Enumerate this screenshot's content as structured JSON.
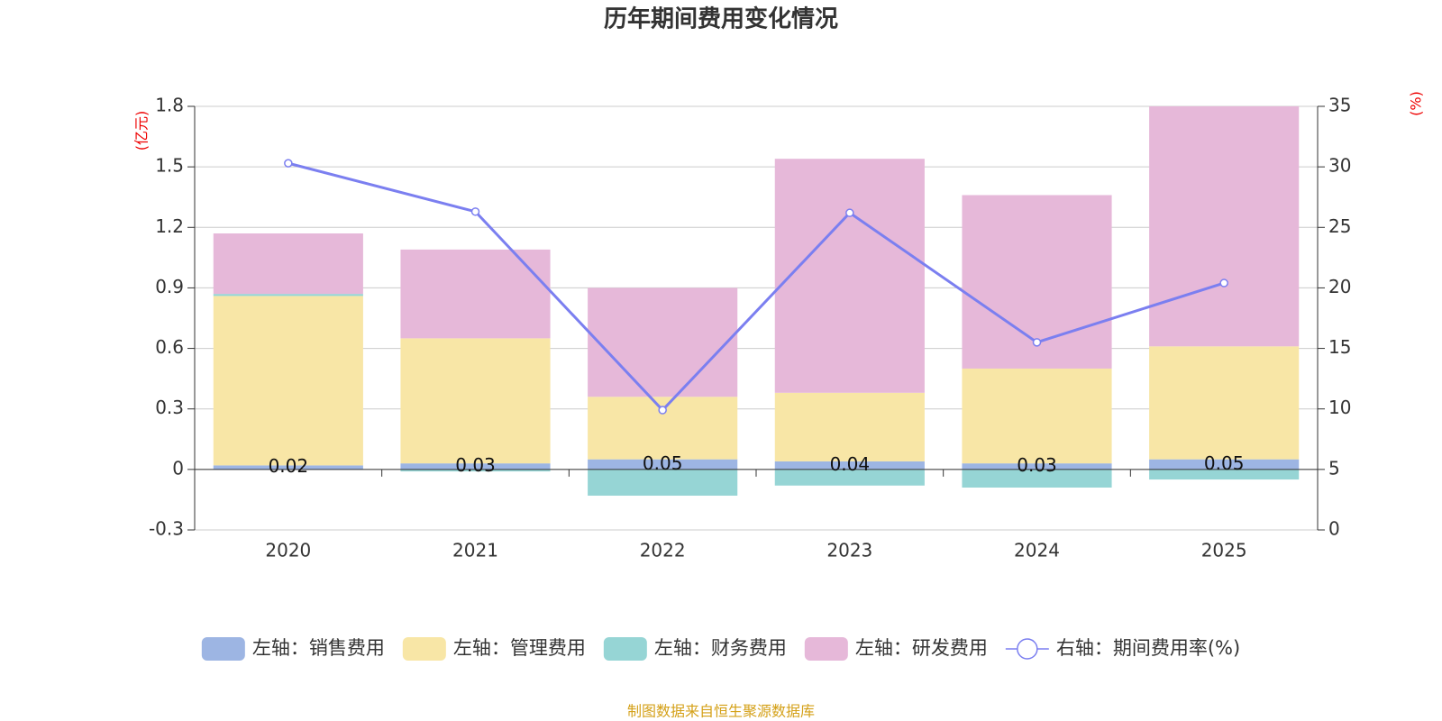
{
  "chart_data": {
    "type": "bar",
    "title": "历年期间费用变化情况",
    "ylabel": "(亿元)",
    "y2label": "(%)",
    "categories": [
      "2020",
      "2021",
      "2022",
      "2023",
      "2024",
      "2025"
    ],
    "series": [
      {
        "name": "左轴：销售费用",
        "type": "bar",
        "color": "#9db5e3",
        "values": [
          0.02,
          0.03,
          0.05,
          0.04,
          0.03,
          0.05
        ],
        "show_labels": true
      },
      {
        "name": "左轴：管理费用",
        "type": "bar",
        "color": "#f8e6a6",
        "values": [
          0.84,
          0.62,
          0.31,
          0.34,
          0.47,
          0.56
        ]
      },
      {
        "name": "左轴：财务费用",
        "type": "bar",
        "color": "#96d5d5",
        "values": [
          0.01,
          -0.01,
          -0.13,
          -0.08,
          -0.09,
          -0.05
        ]
      },
      {
        "name": "左轴：研发费用",
        "type": "bar",
        "color": "#e6b8d9",
        "values": [
          0.3,
          0.44,
          0.54,
          1.16,
          0.86,
          1.19
        ]
      },
      {
        "name": "右轴：期间费用率(%)",
        "type": "line",
        "axis": "y2",
        "color": "#7b7ff0",
        "values": [
          30.3,
          26.3,
          9.9,
          26.2,
          15.5,
          20.4
        ]
      }
    ],
    "ylim": [
      -0.3,
      1.8
    ],
    "yticks": [
      -0.3,
      0,
      0.3,
      0.6,
      0.9,
      1.2,
      1.5,
      1.8
    ],
    "y2lim": [
      0,
      35
    ],
    "y2ticks": [
      0,
      5,
      10,
      15,
      20,
      25,
      30,
      35
    ],
    "grid": true,
    "legend": "bottom",
    "source": "制图数据来自恒生聚源数据库"
  }
}
